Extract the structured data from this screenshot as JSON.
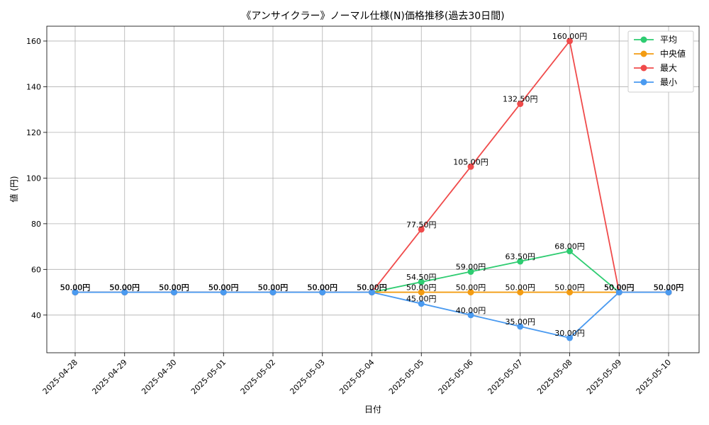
{
  "chart_data": {
    "type": "line",
    "title": "《アンサイクラー》ノーマル仕様(N)価格推移(過去30日間)",
    "xlabel": "日付",
    "ylabel": "値 (円)",
    "categories": [
      "2025-04-28",
      "2025-04-29",
      "2025-04-30",
      "2025-05-01",
      "2025-05-02",
      "2025-05-03",
      "2025-05-04",
      "2025-05-05",
      "2025-05-06",
      "2025-05-07",
      "2025-05-08",
      "2025-05-09",
      "2025-05-10"
    ],
    "ylim": [
      23.5,
      166.5
    ],
    "yticks": [
      40,
      60,
      80,
      100,
      120,
      140,
      160
    ],
    "grid": true,
    "legend_position": "top-right",
    "value_suffix": "円",
    "series": [
      {
        "name": "平均",
        "color": "#2ecc71",
        "values": [
          50,
          50,
          50,
          50,
          50,
          50,
          50,
          54.5,
          59,
          63.5,
          68,
          50,
          50
        ]
      },
      {
        "name": "中央値",
        "color": "#f39c12",
        "values": [
          50,
          50,
          50,
          50,
          50,
          50,
          50,
          50,
          50,
          50,
          50,
          50,
          50
        ]
      },
      {
        "name": "最大",
        "color": "#f04b4b",
        "values": [
          50,
          50,
          50,
          50,
          50,
          50,
          50,
          77.5,
          105,
          132.5,
          160,
          50,
          50
        ]
      },
      {
        "name": "最小",
        "color": "#4a9af0",
        "values": [
          50,
          50,
          50,
          50,
          50,
          50,
          50,
          45,
          40,
          35,
          30,
          50,
          50
        ]
      }
    ]
  }
}
